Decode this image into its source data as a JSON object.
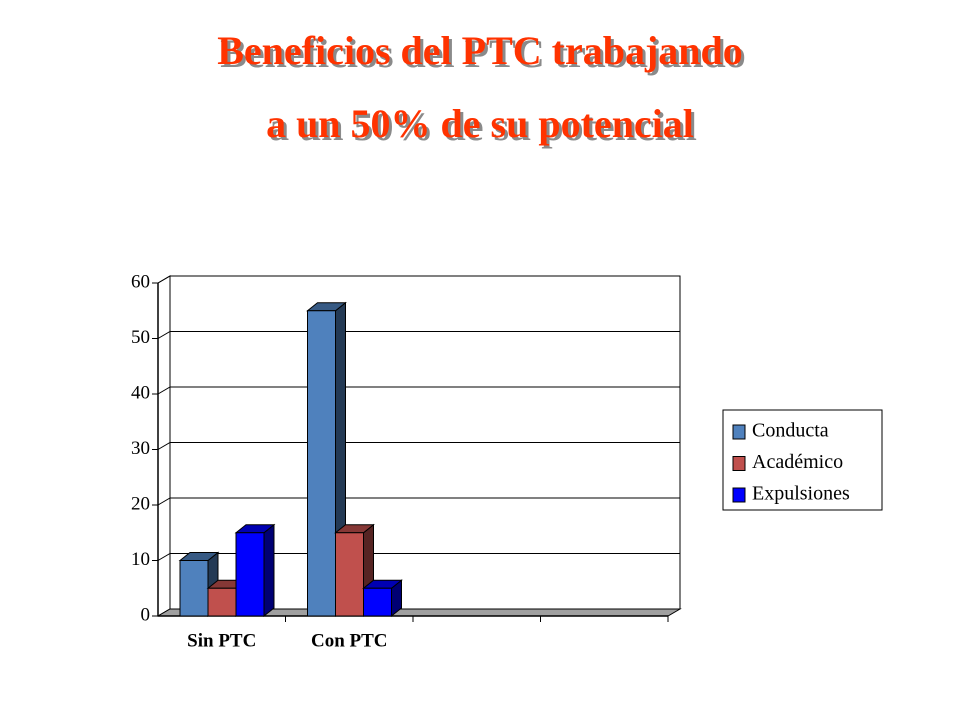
{
  "chart_data": {
    "type": "bar",
    "title": [
      "Beneficios del PTC trabajando",
      "a un 50% de su potencial"
    ],
    "categories": [
      "Sin PTC",
      "Con PTC",
      null,
      null
    ],
    "series": [
      {
        "name": "Conducta",
        "color": "#4f81bd",
        "values": [
          10,
          55,
          null,
          null
        ]
      },
      {
        "name": "Académico",
        "color": "#c0504d",
        "values": [
          5,
          15,
          null,
          null
        ]
      },
      {
        "name": "Expulsiones",
        "color": "#0000ff",
        "values": [
          15,
          5,
          null,
          null
        ]
      }
    ],
    "ylim": [
      0,
      60
    ],
    "yticks": [
      0,
      10,
      20,
      30,
      40,
      50,
      60
    ],
    "grid": true,
    "legend": "right"
  }
}
